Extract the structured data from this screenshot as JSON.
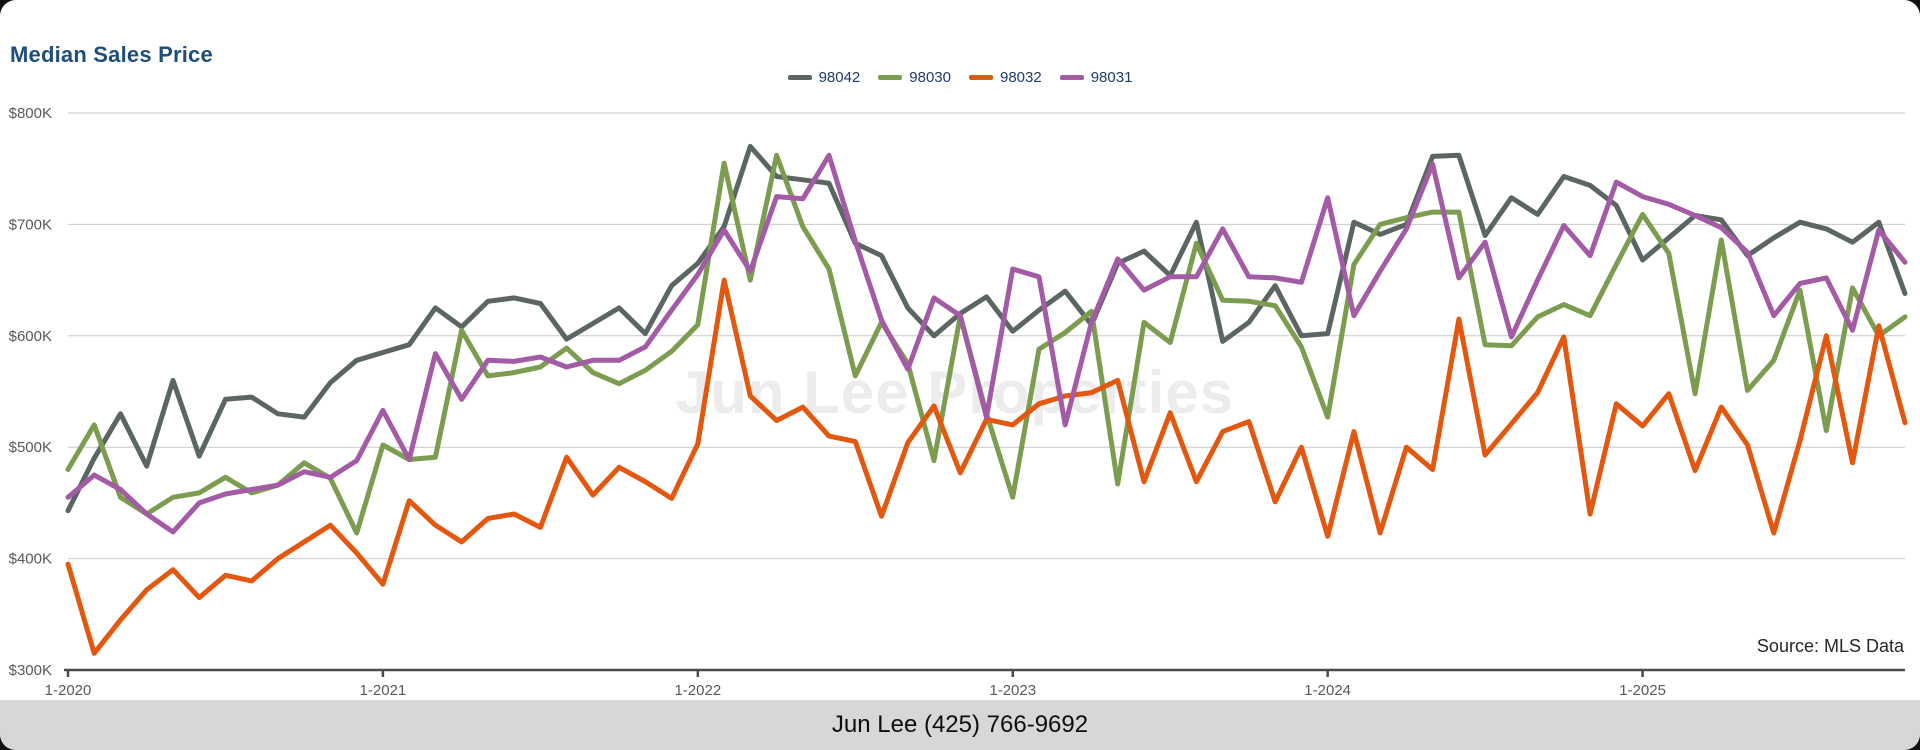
{
  "title": "Median Sales Price",
  "watermark": "Jun Lee Properties",
  "source_note": "Source: MLS Data",
  "footer": {
    "contact": "Jun Lee (425) 766-9692"
  },
  "colors": {
    "98042": "#5B6663",
    "98030": "#7C9C4F",
    "98032": "#E4570E",
    "98031": "#A35BA5",
    "title_text": "#1F4E79",
    "legend_text": "#1F3B68",
    "axis_text": "#595959",
    "gridline": "#c9c9c9",
    "axis_line": "#4a4a4a",
    "footer_bar": "#d7d7d7",
    "watermark_text": "#ececec"
  },
  "chart_data": {
    "type": "line",
    "title": "Median Sales Price",
    "x_start": "2020-01",
    "x_end": "2025-11",
    "interval": "monthly",
    "x_tick_labels": [
      "1-2020",
      "1-2021",
      "1-2022",
      "1-2023",
      "1-2024",
      "1-2025"
    ],
    "x_tick_month_index": [
      0,
      12,
      24,
      36,
      48,
      60
    ],
    "y_tick_labels": [
      "$300K",
      "$400K",
      "$500K",
      "$600K",
      "$700K",
      "$800K"
    ],
    "ylim_thousands": [
      300,
      800
    ],
    "grid": true,
    "legend_position": "top-center",
    "units": "USD thousands",
    "series": [
      {
        "name": "98042",
        "values": [
          443,
          490,
          530,
          483,
          560,
          492,
          543,
          545,
          530,
          527,
          558,
          578,
          585,
          592,
          625,
          608,
          631,
          634,
          629,
          597,
          611,
          625,
          602,
          645,
          665,
          698,
          770,
          743,
          740,
          737,
          683,
          672,
          625,
          600,
          620,
          635,
          604,
          623,
          640,
          610,
          665,
          676,
          654,
          702,
          595,
          612,
          645,
          600,
          602,
          702,
          691,
          700,
          761,
          762,
          690,
          724,
          709,
          743,
          735,
          717,
          668,
          688,
          708,
          704,
          672,
          688,
          702,
          696,
          684,
          702,
          638
        ]
      },
      {
        "name": "98030",
        "values": [
          480,
          520,
          455,
          440,
          455,
          459,
          473,
          459,
          466,
          486,
          472,
          423,
          502,
          489,
          491,
          605,
          564,
          567,
          572,
          589,
          567,
          557,
          569,
          586,
          610,
          755,
          650,
          762,
          698,
          660,
          564,
          612,
          575,
          488,
          618,
          530,
          455,
          588,
          603,
          622,
          467,
          612,
          594,
          683,
          632,
          631,
          627,
          590,
          527,
          664,
          700,
          706,
          711,
          711,
          592,
          591,
          617,
          628,
          618,
          664,
          709,
          674,
          548,
          686,
          551,
          578,
          641,
          515,
          643,
          600,
          617
        ]
      },
      {
        "name": "98032",
        "values": [
          395,
          315,
          345,
          372,
          390,
          365,
          385,
          380,
          400,
          415,
          430,
          405,
          377,
          452,
          430,
          415,
          436,
          440,
          428,
          491,
          457,
          482,
          469,
          454,
          503,
          650,
          546,
          524,
          536,
          510,
          505,
          438,
          504,
          537,
          477,
          525,
          520,
          539,
          546,
          549,
          560,
          469,
          531,
          469,
          514,
          523,
          451,
          500,
          420,
          514,
          423,
          500,
          480,
          615,
          493,
          521,
          549,
          599,
          440,
          539,
          519,
          548,
          479,
          536,
          502,
          423,
          506,
          600,
          486,
          609,
          522
        ]
      },
      {
        "name": "98031",
        "values": [
          455,
          475,
          462,
          440,
          424,
          450,
          458,
          462,
          466,
          478,
          473,
          488,
          533,
          489,
          584,
          543,
          578,
          577,
          581,
          572,
          578,
          578,
          590,
          623,
          655,
          695,
          658,
          725,
          723,
          762,
          685,
          614,
          570,
          634,
          618,
          527,
          660,
          653,
          520,
          612,
          669,
          641,
          653,
          653,
          696,
          653,
          652,
          648,
          724,
          618,
          658,
          696,
          754,
          652,
          684,
          599,
          650,
          699,
          672,
          738,
          725,
          718,
          708,
          697,
          675,
          618,
          647,
          652,
          605,
          695,
          666
        ]
      }
    ]
  }
}
